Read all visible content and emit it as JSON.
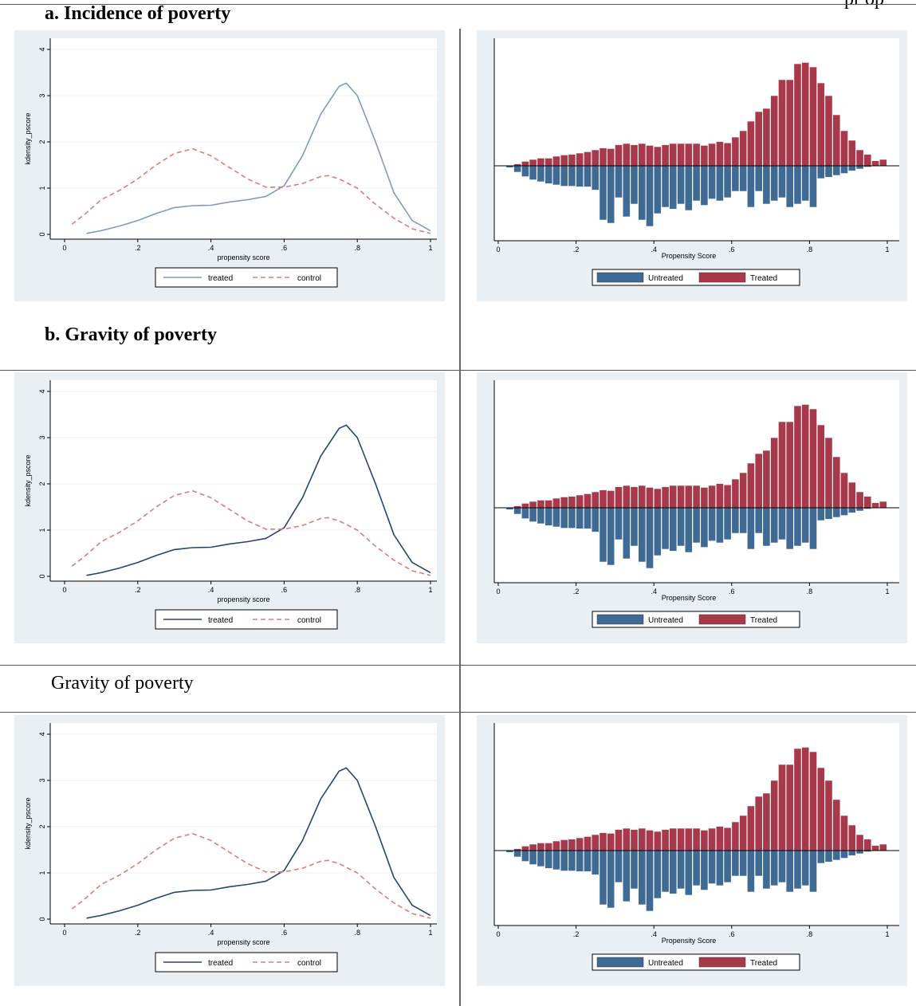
{
  "header": {
    "partial_text": "pr op"
  },
  "sections": [
    {
      "title": "a.   Incidence of poverty",
      "bold": true
    },
    {
      "title": "b.   Gravity of poverty",
      "bold": true
    },
    {
      "title": "Gravity of poverty",
      "bold": false
    }
  ],
  "colors": {
    "panel_bg": "#e9eff3",
    "plot_bg": "#ffffff",
    "treated_line": [
      "#7f9cbd",
      "#23466f",
      "#23466f"
    ],
    "control_line": "#e07b7b",
    "treated_bar": "#a8394a",
    "untreated_bar": "#3e6a94"
  },
  "chart_data": [
    {
      "type": "line",
      "title": "",
      "xlabel": "propensity score",
      "ylabel": "kdensity_pscore",
      "xlim": [
        0,
        1
      ],
      "ylim": [
        0,
        4
      ],
      "xticks": [
        "0",
        ".2",
        ".4",
        ".6",
        ".8",
        "1"
      ],
      "yticks": [
        "0",
        "1",
        "2",
        "3",
        "4"
      ],
      "grid": true,
      "legend_position": "bottom",
      "series": [
        {
          "name": "treated",
          "style": "solid",
          "x": [
            0.06,
            0.1,
            0.15,
            0.2,
            0.25,
            0.3,
            0.35,
            0.4,
            0.45,
            0.5,
            0.55,
            0.6,
            0.65,
            0.7,
            0.75,
            0.77,
            0.8,
            0.85,
            0.9,
            0.95,
            1.0
          ],
          "y": [
            0.02,
            0.08,
            0.18,
            0.3,
            0.45,
            0.58,
            0.62,
            0.63,
            0.7,
            0.75,
            0.82,
            1.05,
            1.7,
            2.6,
            3.2,
            3.27,
            3.0,
            2.0,
            0.9,
            0.3,
            0.08
          ]
        },
        {
          "name": "control",
          "style": "dashed",
          "x": [
            0.02,
            0.05,
            0.1,
            0.15,
            0.2,
            0.25,
            0.3,
            0.35,
            0.4,
            0.45,
            0.5,
            0.55,
            0.6,
            0.65,
            0.7,
            0.72,
            0.75,
            0.8,
            0.85,
            0.9,
            0.95,
            1.0
          ],
          "y": [
            0.22,
            0.4,
            0.75,
            0.95,
            1.2,
            1.5,
            1.75,
            1.85,
            1.7,
            1.45,
            1.2,
            1.02,
            1.02,
            1.1,
            1.25,
            1.27,
            1.2,
            1.0,
            0.65,
            0.35,
            0.12,
            0.02
          ]
        }
      ]
    },
    {
      "type": "bar",
      "title": "",
      "xlabel": "Propensity Score",
      "xlim": [
        0,
        1
      ],
      "xticks": [
        "0",
        ".2",
        ".4",
        ".6",
        ".8",
        "1"
      ],
      "legend_position": "bottom",
      "bin_width": 0.02,
      "series": [
        {
          "name": "Untreated",
          "direction": "down",
          "x": [
            0.03,
            0.05,
            0.07,
            0.09,
            0.11,
            0.13,
            0.15,
            0.17,
            0.19,
            0.21,
            0.23,
            0.25,
            0.27,
            0.29,
            0.31,
            0.33,
            0.35,
            0.37,
            0.39,
            0.41,
            0.43,
            0.45,
            0.47,
            0.49,
            0.51,
            0.53,
            0.55,
            0.57,
            0.59,
            0.61,
            0.63,
            0.65,
            0.67,
            0.69,
            0.71,
            0.73,
            0.75,
            0.77,
            0.79,
            0.81,
            0.83,
            0.85,
            0.87,
            0.89,
            0.91,
            0.93,
            0.95
          ],
          "values": [
            3,
            10,
            17,
            22,
            25,
            28,
            30,
            32,
            32,
            33,
            33,
            38,
            85,
            90,
            50,
            80,
            60,
            85,
            95,
            75,
            65,
            68,
            60,
            70,
            55,
            62,
            52,
            55,
            50,
            40,
            40,
            65,
            40,
            60,
            55,
            50,
            65,
            60,
            55,
            65,
            20,
            18,
            15,
            12,
            8,
            5,
            2
          ]
        },
        {
          "name": "Treated",
          "direction": "up",
          "x": [
            0.05,
            0.07,
            0.09,
            0.11,
            0.13,
            0.15,
            0.17,
            0.19,
            0.21,
            0.23,
            0.25,
            0.27,
            0.29,
            0.31,
            0.33,
            0.35,
            0.37,
            0.39,
            0.41,
            0.43,
            0.45,
            0.47,
            0.49,
            0.51,
            0.53,
            0.55,
            0.57,
            0.59,
            0.61,
            0.63,
            0.65,
            0.67,
            0.69,
            0.71,
            0.73,
            0.75,
            0.77,
            0.79,
            0.81,
            0.83,
            0.85,
            0.87,
            0.89,
            0.91,
            0.93,
            0.95,
            0.97,
            0.99
          ],
          "values": [
            3,
            7,
            10,
            12,
            12,
            15,
            17,
            18,
            20,
            22,
            25,
            28,
            27,
            33,
            35,
            33,
            35,
            32,
            30,
            33,
            35,
            35,
            35,
            35,
            32,
            35,
            38,
            36,
            45,
            55,
            70,
            85,
            90,
            110,
            135,
            135,
            160,
            162,
            155,
            130,
            110,
            80,
            55,
            40,
            25,
            18,
            8,
            10
          ]
        }
      ]
    }
  ],
  "panel_plans": [
    {
      "line_color_index": 0
    },
    {
      "line_color_index": 1
    },
    {
      "line_color_index": 2
    }
  ]
}
